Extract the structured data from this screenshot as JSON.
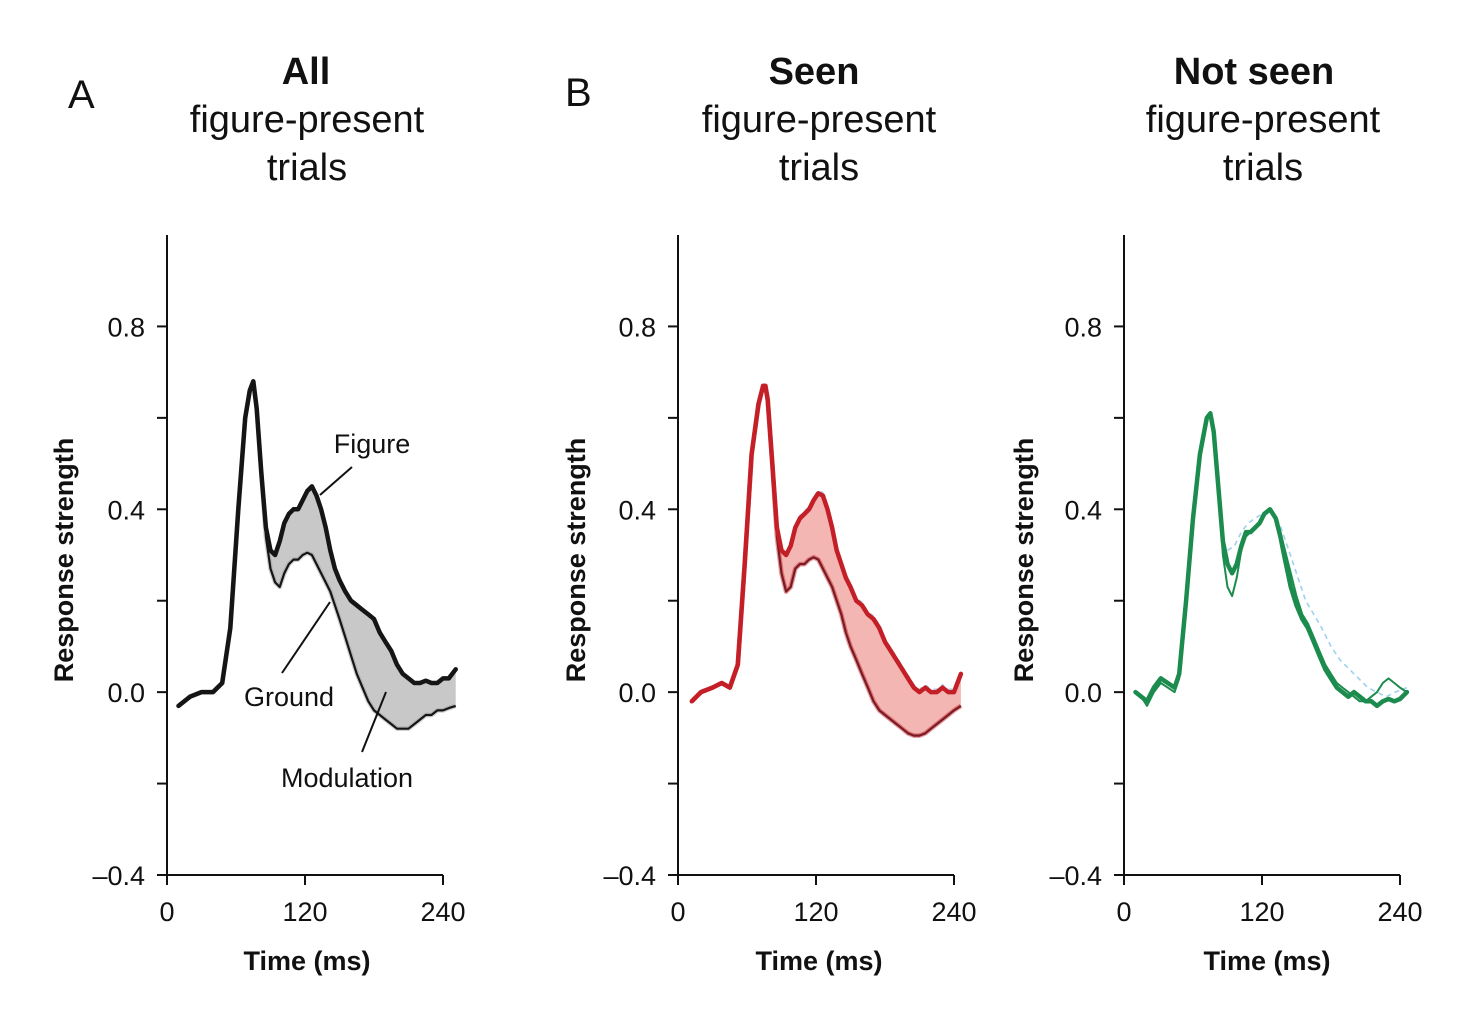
{
  "figure": {
    "panel_letters": [
      "A",
      "B"
    ]
  },
  "colors": {
    "all_line": "#151515",
    "all_fill": "#c8c8c8",
    "all_ground_halo": "#9a9a9a",
    "seen_line": "#c41e27",
    "seen_line_dark": "#7a1a22",
    "seen_fill": "#f4b6b2",
    "not_seen_line": "#1b8c4d",
    "reference_trace": "#8ec9ea"
  },
  "chart_data": [
    {
      "id": "all",
      "type": "line",
      "panel_letter": "A",
      "title": "All",
      "subtitle_lines": [
        "figure-present",
        "trials"
      ],
      "xlabel": "Time (ms)",
      "ylabel": "Response strength",
      "xlim": [
        0,
        240
      ],
      "ylim": [
        -0.4,
        1.0
      ],
      "xticks": [
        0,
        120,
        240
      ],
      "xtick_labels": [
        "0",
        "120",
        "240"
      ],
      "yticks_major": [
        -0.4,
        0.0,
        0.4,
        0.8
      ],
      "ytick_labels": [
        "–0.4",
        "0.0",
        "0.4",
        "0.8"
      ],
      "yticks_minor": [
        -0.2,
        0.2,
        0.6
      ],
      "grid": false,
      "fill_between": [
        "Figure",
        "Ground"
      ],
      "annotations": [
        {
          "text": "Figure",
          "points_to": "Figure"
        },
        {
          "text": "Ground",
          "points_to": "Ground"
        },
        {
          "text": "Modulation",
          "points_to": "fill"
        }
      ],
      "series": [
        {
          "name": "Figure",
          "x": [
            10,
            20,
            30,
            40,
            48,
            55,
            62,
            68,
            72,
            75,
            78,
            82,
            86,
            90,
            94,
            98,
            102,
            106,
            110,
            114,
            118,
            122,
            126,
            130,
            134,
            138,
            142,
            146,
            150,
            155,
            160,
            165,
            170,
            175,
            180,
            185,
            190,
            195,
            200,
            205,
            210,
            215,
            220,
            225,
            230,
            235,
            240,
            245,
            251
          ],
          "y": [
            -0.03,
            -0.01,
            0.0,
            0.0,
            0.02,
            0.14,
            0.4,
            0.6,
            0.66,
            0.68,
            0.62,
            0.48,
            0.36,
            0.31,
            0.3,
            0.33,
            0.37,
            0.39,
            0.4,
            0.4,
            0.42,
            0.44,
            0.45,
            0.43,
            0.4,
            0.36,
            0.31,
            0.27,
            0.245,
            0.22,
            0.2,
            0.19,
            0.18,
            0.17,
            0.16,
            0.13,
            0.11,
            0.09,
            0.06,
            0.04,
            0.03,
            0.02,
            0.02,
            0.025,
            0.02,
            0.02,
            0.03,
            0.03,
            0.05
          ]
        },
        {
          "name": "Ground",
          "x": [
            10,
            20,
            30,
            40,
            48,
            55,
            62,
            68,
            72,
            75,
            78,
            82,
            86,
            90,
            94,
            98,
            102,
            106,
            110,
            114,
            118,
            122,
            126,
            130,
            134,
            138,
            142,
            146,
            150,
            155,
            160,
            165,
            170,
            175,
            180,
            185,
            190,
            195,
            200,
            205,
            210,
            215,
            220,
            225,
            230,
            235,
            240,
            245,
            251
          ],
          "y": [
            -0.03,
            -0.01,
            0.0,
            0.0,
            0.02,
            0.14,
            0.4,
            0.6,
            0.66,
            0.68,
            0.62,
            0.48,
            0.34,
            0.27,
            0.24,
            0.23,
            0.26,
            0.28,
            0.29,
            0.29,
            0.3,
            0.305,
            0.3,
            0.28,
            0.26,
            0.24,
            0.22,
            0.19,
            0.16,
            0.12,
            0.08,
            0.04,
            0.01,
            -0.02,
            -0.04,
            -0.05,
            -0.06,
            -0.07,
            -0.08,
            -0.08,
            -0.08,
            -0.07,
            -0.06,
            -0.05,
            -0.05,
            -0.04,
            -0.04,
            -0.035,
            -0.03
          ]
        }
      ]
    },
    {
      "id": "seen",
      "type": "line",
      "panel_letter": "B",
      "title": "Seen",
      "subtitle_lines": [
        "figure-present",
        "trials"
      ],
      "xlabel": "Time (ms)",
      "ylabel": "Response strength",
      "xlim": [
        0,
        240
      ],
      "ylim": [
        -0.4,
        1.0
      ],
      "xticks": [
        0,
        120,
        240
      ],
      "xtick_labels": [
        "0",
        "120",
        "240"
      ],
      "yticks_major": [
        -0.4,
        0.0,
        0.4,
        0.8
      ],
      "ytick_labels": [
        "–0.4",
        "0.0",
        "0.4",
        "0.8"
      ],
      "yticks_minor": [
        -0.2,
        0.2,
        0.6
      ],
      "grid": false,
      "fill_between": [
        "Figure",
        "Ground"
      ],
      "series": [
        {
          "name": "Figure",
          "x": [
            12,
            20,
            30,
            38,
            45,
            52,
            58,
            64,
            70,
            74,
            76,
            78,
            82,
            86,
            90,
            94,
            98,
            102,
            106,
            110,
            114,
            118,
            122,
            126,
            130,
            134,
            138,
            142,
            146,
            150,
            155,
            160,
            165,
            170,
            175,
            180,
            185,
            190,
            195,
            200,
            205,
            210,
            215,
            220,
            225,
            230,
            235,
            240,
            246
          ],
          "y": [
            -0.02,
            0.0,
            0.01,
            0.02,
            0.01,
            0.06,
            0.28,
            0.52,
            0.63,
            0.67,
            0.67,
            0.64,
            0.5,
            0.36,
            0.31,
            0.3,
            0.32,
            0.36,
            0.38,
            0.39,
            0.4,
            0.42,
            0.435,
            0.43,
            0.4,
            0.36,
            0.31,
            0.28,
            0.25,
            0.23,
            0.2,
            0.19,
            0.17,
            0.16,
            0.14,
            0.11,
            0.09,
            0.07,
            0.05,
            0.03,
            0.01,
            0.0,
            0.01,
            0.0,
            0.0,
            0.01,
            0.0,
            0.0,
            0.04
          ]
        },
        {
          "name": "Ground",
          "x": [
            12,
            20,
            30,
            38,
            45,
            52,
            58,
            64,
            70,
            74,
            76,
            78,
            82,
            86,
            90,
            94,
            98,
            102,
            106,
            110,
            114,
            118,
            122,
            126,
            130,
            134,
            138,
            142,
            146,
            150,
            155,
            160,
            165,
            170,
            175,
            180,
            185,
            190,
            195,
            200,
            205,
            210,
            215,
            220,
            225,
            230,
            235,
            240,
            246
          ],
          "y": [
            -0.02,
            0.0,
            0.01,
            0.02,
            0.01,
            0.06,
            0.28,
            0.52,
            0.63,
            0.67,
            0.67,
            0.64,
            0.5,
            0.34,
            0.26,
            0.22,
            0.23,
            0.27,
            0.28,
            0.28,
            0.29,
            0.295,
            0.29,
            0.27,
            0.25,
            0.23,
            0.2,
            0.17,
            0.13,
            0.1,
            0.07,
            0.04,
            0.01,
            -0.02,
            -0.04,
            -0.05,
            -0.06,
            -0.07,
            -0.08,
            -0.09,
            -0.095,
            -0.095,
            -0.09,
            -0.08,
            -0.07,
            -0.06,
            -0.05,
            -0.04,
            -0.03
          ]
        }
      ]
    },
    {
      "id": "not_seen",
      "type": "line",
      "panel_letter": "",
      "title": "Not seen",
      "subtitle_lines": [
        "figure-present",
        "trials"
      ],
      "xlabel": "Time (ms)",
      "ylabel": "Response strength",
      "xlim": [
        0,
        240
      ],
      "ylim": [
        -0.4,
        1.0
      ],
      "xticks": [
        0,
        120,
        240
      ],
      "xtick_labels": [
        "0",
        "120",
        "240"
      ],
      "yticks_major": [
        -0.4,
        0.0,
        0.4,
        0.8
      ],
      "ytick_labels": [
        "–0.4",
        "0.0",
        "0.4",
        "0.8"
      ],
      "yticks_minor": [
        -0.2,
        0.2,
        0.6
      ],
      "grid": false,
      "fill_between": null,
      "series": [
        {
          "name": "Figure",
          "x": [
            10,
            15,
            20,
            26,
            32,
            38,
            44,
            48,
            54,
            60,
            66,
            72,
            75,
            78,
            82,
            86,
            90,
            94,
            98,
            102,
            106,
            110,
            114,
            118,
            122,
            127,
            132,
            136,
            140,
            145,
            150,
            155,
            160,
            165,
            170,
            175,
            180,
            185,
            190,
            195,
            200,
            205,
            210,
            215,
            220,
            225,
            230,
            235,
            240,
            246
          ],
          "y": [
            0.0,
            -0.01,
            -0.02,
            0.01,
            0.03,
            0.02,
            0.01,
            0.04,
            0.2,
            0.38,
            0.52,
            0.6,
            0.61,
            0.57,
            0.45,
            0.33,
            0.28,
            0.26,
            0.28,
            0.32,
            0.35,
            0.35,
            0.36,
            0.37,
            0.39,
            0.4,
            0.38,
            0.34,
            0.29,
            0.23,
            0.19,
            0.16,
            0.14,
            0.11,
            0.08,
            0.05,
            0.03,
            0.01,
            0.0,
            -0.01,
            0.0,
            -0.01,
            -0.02,
            -0.02,
            -0.03,
            -0.02,
            -0.015,
            -0.02,
            -0.015,
            0.0
          ]
        },
        {
          "name": "Ground",
          "x": [
            10,
            15,
            20,
            26,
            32,
            38,
            44,
            48,
            54,
            60,
            66,
            72,
            75,
            78,
            82,
            86,
            90,
            94,
            98,
            102,
            106,
            110,
            114,
            118,
            122,
            127,
            132,
            136,
            140,
            145,
            150,
            155,
            160,
            165,
            170,
            175,
            180,
            185,
            190,
            195,
            200,
            205,
            210,
            215,
            220,
            225,
            230,
            235,
            240,
            246
          ],
          "y": [
            0.0,
            -0.01,
            -0.03,
            0.0,
            0.02,
            0.01,
            0.0,
            0.03,
            0.2,
            0.38,
            0.52,
            0.6,
            0.61,
            0.57,
            0.43,
            0.3,
            0.23,
            0.21,
            0.25,
            0.31,
            0.34,
            0.35,
            0.36,
            0.37,
            0.39,
            0.4,
            0.38,
            0.35,
            0.31,
            0.26,
            0.21,
            0.17,
            0.15,
            0.12,
            0.09,
            0.06,
            0.04,
            0.02,
            0.01,
            0.0,
            -0.01,
            -0.02,
            -0.02,
            -0.01,
            0.0,
            0.02,
            0.03,
            0.02,
            0.01,
            0.0
          ]
        },
        {
          "name": "Reference (dotted)",
          "x": [
            90,
            96,
            102,
            108,
            114,
            120,
            127,
            135,
            142,
            150,
            158,
            165,
            172,
            180,
            188,
            196,
            204,
            212,
            220,
            228,
            236,
            246
          ],
          "y": [
            0.31,
            0.32,
            0.35,
            0.37,
            0.38,
            0.39,
            0.4,
            0.37,
            0.32,
            0.26,
            0.2,
            0.17,
            0.14,
            0.1,
            0.07,
            0.05,
            0.03,
            0.01,
            0.0,
            -0.01,
            0.0,
            0.01
          ]
        }
      ]
    }
  ]
}
